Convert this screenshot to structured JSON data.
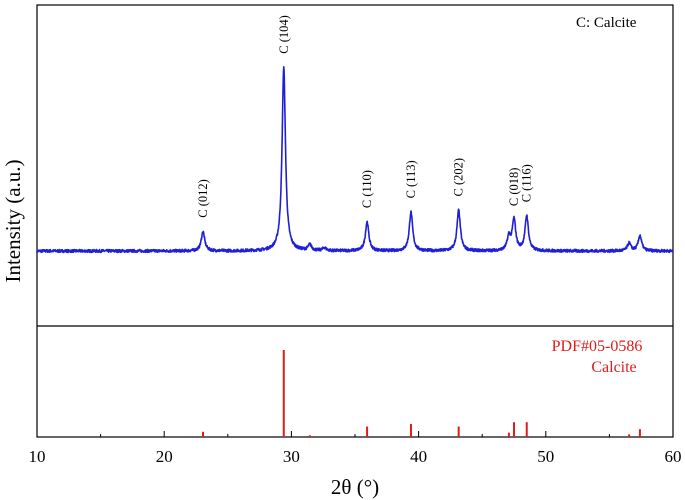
{
  "chart_data": {
    "type": "line",
    "xlabel": "2θ (°)",
    "ylabel": "Intensity (a.u.)",
    "xlim": [
      10,
      60
    ],
    "x_ticks": [
      10,
      20,
      30,
      40,
      50,
      60
    ],
    "x_tick_labels": [
      "10",
      "20",
      "30",
      "40",
      "50",
      "60"
    ],
    "legend_text": "C: Calcite",
    "legend_position": "top-right",
    "colors": {
      "pattern": "#1f1fd6",
      "reference": "#e01b1b",
      "axes": "#000000"
    },
    "pattern": {
      "baseline": 0.0,
      "noise": 0.015,
      "peaks": [
        {
          "x": 23.05,
          "height": 0.1
        },
        {
          "x": 29.4,
          "height": 0.95
        },
        {
          "x": 31.45,
          "height": 0.03
        },
        {
          "x": 32.6,
          "height": 0.015
        },
        {
          "x": 35.95,
          "height": 0.15
        },
        {
          "x": 39.4,
          "height": 0.2
        },
        {
          "x": 43.15,
          "height": 0.21
        },
        {
          "x": 47.1,
          "height": 0.07
        },
        {
          "x": 47.5,
          "height": 0.16
        },
        {
          "x": 48.5,
          "height": 0.18
        },
        {
          "x": 56.55,
          "height": 0.04
        },
        {
          "x": 57.4,
          "height": 0.08
        }
      ]
    },
    "peak_labels": [
      {
        "x": 23.05,
        "text": "C (012)"
      },
      {
        "x": 29.4,
        "text": "C (104)"
      },
      {
        "x": 35.95,
        "text": "C (110)"
      },
      {
        "x": 39.4,
        "text": "C (113)"
      },
      {
        "x": 43.15,
        "text": "C (202)"
      },
      {
        "x": 47.5,
        "text": "C (018)"
      },
      {
        "x": 48.5,
        "text": "C (116)"
      }
    ],
    "reference": {
      "label": "PDF#05-0586",
      "sublabel": "Calcite",
      "lines": [
        {
          "x": 23.05,
          "intensity": 0.06
        },
        {
          "x": 29.4,
          "intensity": 1.0
        },
        {
          "x": 31.45,
          "intensity": 0.02
        },
        {
          "x": 35.95,
          "intensity": 0.12
        },
        {
          "x": 39.4,
          "intensity": 0.15
        },
        {
          "x": 43.15,
          "intensity": 0.12
        },
        {
          "x": 47.1,
          "intensity": 0.05
        },
        {
          "x": 47.5,
          "intensity": 0.17
        },
        {
          "x": 48.5,
          "intensity": 0.17
        },
        {
          "x": 56.55,
          "intensity": 0.03
        },
        {
          "x": 57.4,
          "intensity": 0.09
        }
      ]
    }
  }
}
